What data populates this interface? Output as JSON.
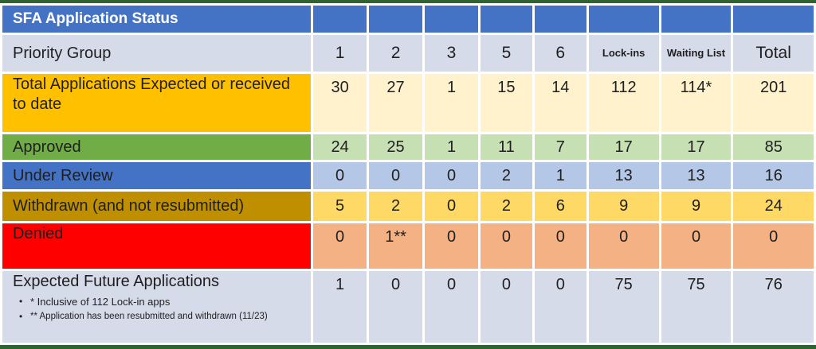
{
  "title": "SFA Application Status",
  "colors": {
    "frame_green": "#2F6432",
    "header_blue": "#4472C4",
    "lavender": "#D6DBEA",
    "orange": "#FFC000",
    "cream": "#FFF2CC",
    "green": "#70AD47",
    "light_green": "#C6E0B4",
    "light_blue": "#B4C7E7",
    "dark_gold": "#BF8F00",
    "gold": "#FFD966",
    "red": "#FF0000",
    "salmon": "#F4B183",
    "text_dark": "#1F1F1F",
    "white": "#FFFFFF"
  },
  "table": {
    "columns_header_label": "Priority Group",
    "columns": [
      "1",
      "2",
      "3",
      "5",
      "6",
      "Lock-ins",
      "Waiting List",
      "Total"
    ],
    "rows": [
      {
        "label": "Total Applications Expected or received to date",
        "style": "orange",
        "values": [
          "30",
          "27",
          "1",
          "15",
          "14",
          "112",
          "114*",
          "201"
        ]
      },
      {
        "label": "Approved",
        "style": "green",
        "values": [
          "24",
          "25",
          "1",
          "11",
          "7",
          "17",
          "17",
          "85"
        ]
      },
      {
        "label": "Under Review",
        "style": "blue",
        "values": [
          "0",
          "0",
          "0",
          "2",
          "1",
          "13",
          "13",
          "16"
        ]
      },
      {
        "label": "Withdrawn (and not resubmitted)",
        "style": "gold",
        "values": [
          "5",
          "2",
          "0",
          "2",
          "6",
          "9",
          "9",
          "24"
        ]
      },
      {
        "label": "Denied",
        "style": "red",
        "values": [
          "0",
          "1**",
          "0",
          "0",
          "0",
          "0",
          "0",
          "0"
        ]
      },
      {
        "label": "Expected Future Applications",
        "style": "lavender",
        "values": [
          "1",
          "0",
          "0",
          "0",
          "0",
          "75",
          "75",
          "76"
        ],
        "footnotes": [
          "* Inclusive of 112 Lock-in apps",
          "** Application has been resubmitted and withdrawn (11/23)"
        ]
      }
    ]
  },
  "chart_data": {
    "type": "table",
    "title": "SFA Application Status",
    "row_header": "Priority Group",
    "categories": [
      "1",
      "2",
      "3",
      "5",
      "6",
      "Lock-ins",
      "Waiting List",
      "Total"
    ],
    "series": [
      {
        "name": "Total Applications Expected or received to date",
        "values": [
          "30",
          "27",
          "1",
          "15",
          "14",
          "112",
          "114*",
          "201"
        ]
      },
      {
        "name": "Approved",
        "values": [
          24,
          25,
          1,
          11,
          7,
          17,
          17,
          85
        ]
      },
      {
        "name": "Under Review",
        "values": [
          0,
          0,
          0,
          2,
          1,
          13,
          13,
          16
        ]
      },
      {
        "name": "Withdrawn (and not resubmitted)",
        "values": [
          5,
          2,
          0,
          2,
          6,
          9,
          9,
          24
        ]
      },
      {
        "name": "Denied",
        "values": [
          "0",
          "1**",
          "0",
          "0",
          "0",
          "0",
          "0",
          "0"
        ]
      },
      {
        "name": "Expected Future Applications",
        "values": [
          1,
          0,
          0,
          0,
          0,
          75,
          75,
          76
        ]
      }
    ],
    "annotations": [
      "* Inclusive of 112 Lock-in apps",
      "** Application has been resubmitted and withdrawn (11/23)"
    ]
  }
}
